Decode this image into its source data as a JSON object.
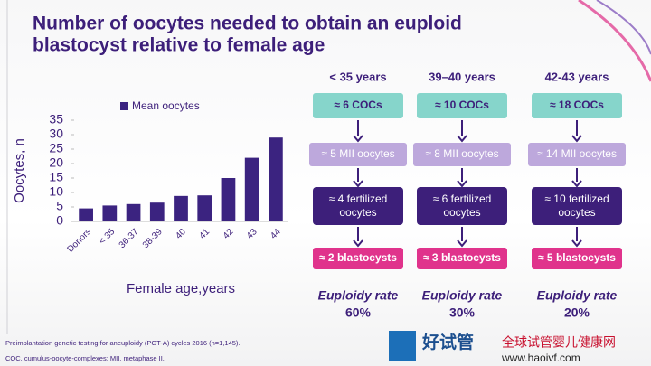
{
  "title_lines": [
    "Number of oocytes needed to obtain an euploid",
    "blastocyst relative to female age"
  ],
  "chart_data": {
    "type": "bar",
    "categories": [
      "Donors",
      "< 35",
      "36-37",
      "38-39",
      "40",
      "41",
      "42",
      "43",
      "44"
    ],
    "series": [
      {
        "name": "Mean oocytes",
        "color": "#3b2380",
        "values": [
          4.5,
          5.5,
          6,
          6.5,
          8.8,
          9,
          15,
          22,
          29
        ]
      }
    ],
    "ylim": [
      0,
      35
    ],
    "yticks": [
      0,
      5,
      10,
      15,
      20,
      25,
      30,
      35
    ],
    "ylabel": "Oocytes, n",
    "xlabel": "Female age,years",
    "legend": "top-left"
  },
  "diagram": {
    "columns": [
      {
        "age": "< 35 years",
        "cocs": "≈ 6 COCs",
        "mii": "≈ 5 MII oocytes",
        "fertilized": [
          "≈ 4 fertilized",
          "oocytes"
        ],
        "blastocysts": "≈ 2 blastocysts",
        "rate_label": "Euploidy rate",
        "rate": "60%"
      },
      {
        "age": "39–40 years",
        "cocs": "≈ 10 COCs",
        "mii": "≈ 8 MII oocytes",
        "fertilized": [
          "≈ 6 fertilized",
          "oocytes"
        ],
        "blastocysts": "≈ 3 blastocysts",
        "rate_label": "Euploidy rate",
        "rate": "30%"
      },
      {
        "age": "42-43 years",
        "cocs": "≈ 18 COCs",
        "mii": "≈ 14 MII oocytes",
        "fertilized": [
          "≈ 10 fertilized",
          "oocytes"
        ],
        "blastocysts": "≈ 5 blastocysts",
        "rate_label": "Euploidy rate",
        "rate": "20%"
      }
    ]
  },
  "footnotes": [
    "Preimplantation genetic testing for aneuploidy (PGT-A) cycles 2016 (n=1,145).",
    "COC, cumulus-oocyte-complexes; MII, metaphase II."
  ],
  "watermark": {
    "brand": "好试管",
    "site": "全球试管婴儿健康网",
    "url": "www.haoivf.com"
  }
}
